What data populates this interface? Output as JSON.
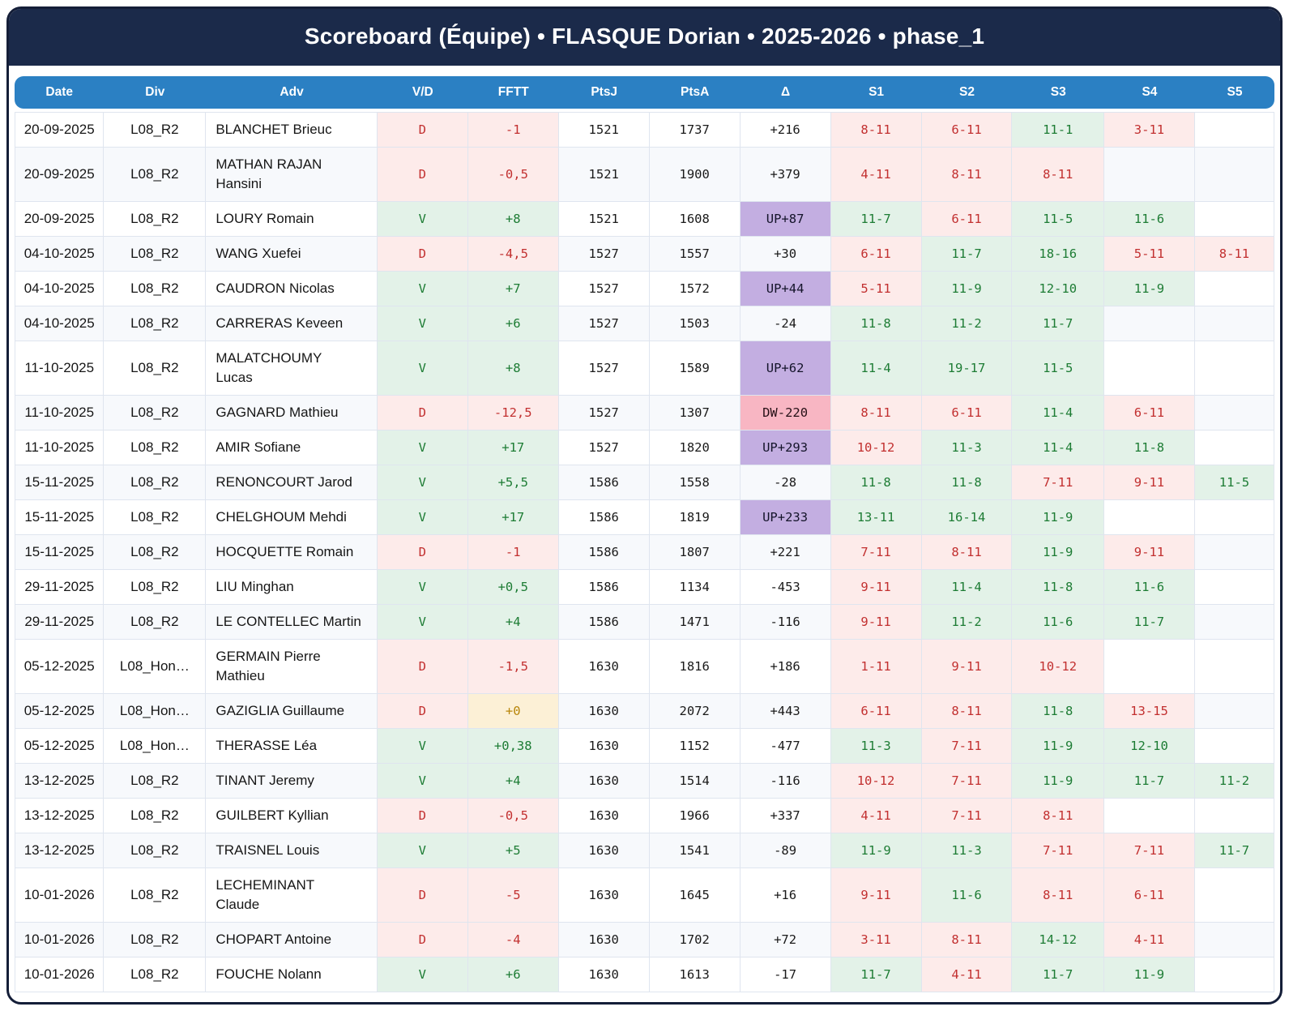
{
  "title": "Scoreboard (Équipe) • FLASQUE Dorian • 2025-2026 • phase_1",
  "colors": {
    "titlebar_bg": "#1b2a4a",
    "card_border": "#141e38",
    "header_bg": "#2b80c3",
    "grid_line": "#dfe5ef",
    "even_row_bg": "#f7f9fc",
    "win_bg": "#e3f2e8",
    "win_text": "#1d7c34",
    "loss_bg": "#fdebea",
    "loss_text": "#c23030",
    "up_bg": "#c3aee1",
    "down_bg": "#f8b6c3",
    "zero_bg": "#fcf0d6",
    "zero_text": "#b8860b"
  },
  "columns": [
    "Date",
    "Div",
    "Adv",
    "V/D",
    "FFTT",
    "PtsJ",
    "PtsA",
    "Δ",
    "S1",
    "S2",
    "S3",
    "S4",
    "S5"
  ],
  "rows": [
    {
      "date": "20-09-2025",
      "div": "L08_R2",
      "adv": "BLANCHET Brieuc",
      "vd": "D",
      "fftt": "-1",
      "fftt_kind": "loss",
      "ptsj": "1521",
      "ptsa": "1737",
      "delta": "+216",
      "delta_kind": "plain",
      "sets": [
        {
          "score": "8-11",
          "win": false
        },
        {
          "score": "6-11",
          "win": false
        },
        {
          "score": "11-1",
          "win": true
        },
        {
          "score": "3-11",
          "win": false
        },
        null
      ]
    },
    {
      "date": "20-09-2025",
      "div": "L08_R2",
      "adv": "MATHAN RAJAN\nHansini",
      "vd": "D",
      "fftt": "-0,5",
      "fftt_kind": "loss",
      "ptsj": "1521",
      "ptsa": "1900",
      "delta": "+379",
      "delta_kind": "plain",
      "sets": [
        {
          "score": "4-11",
          "win": false
        },
        {
          "score": "8-11",
          "win": false
        },
        {
          "score": "8-11",
          "win": false
        },
        null,
        null
      ]
    },
    {
      "date": "20-09-2025",
      "div": "L08_R2",
      "adv": "LOURY Romain",
      "vd": "V",
      "fftt": "+8",
      "fftt_kind": "win",
      "ptsj": "1521",
      "ptsa": "1608",
      "delta": "UP+87",
      "delta_kind": "up",
      "sets": [
        {
          "score": "11-7",
          "win": true
        },
        {
          "score": "6-11",
          "win": false
        },
        {
          "score": "11-5",
          "win": true
        },
        {
          "score": "11-6",
          "win": true
        },
        null
      ]
    },
    {
      "date": "04-10-2025",
      "div": "L08_R2",
      "adv": "WANG Xuefei",
      "vd": "D",
      "fftt": "-4,5",
      "fftt_kind": "loss",
      "ptsj": "1527",
      "ptsa": "1557",
      "delta": "+30",
      "delta_kind": "plain",
      "sets": [
        {
          "score": "6-11",
          "win": false
        },
        {
          "score": "11-7",
          "win": true
        },
        {
          "score": "18-16",
          "win": true
        },
        {
          "score": "5-11",
          "win": false
        },
        {
          "score": "8-11",
          "win": false
        }
      ]
    },
    {
      "date": "04-10-2025",
      "div": "L08_R2",
      "adv": "CAUDRON Nicolas",
      "vd": "V",
      "fftt": "+7",
      "fftt_kind": "win",
      "ptsj": "1527",
      "ptsa": "1572",
      "delta": "UP+44",
      "delta_kind": "up",
      "sets": [
        {
          "score": "5-11",
          "win": false
        },
        {
          "score": "11-9",
          "win": true
        },
        {
          "score": "12-10",
          "win": true
        },
        {
          "score": "11-9",
          "win": true
        },
        null
      ]
    },
    {
      "date": "04-10-2025",
      "div": "L08_R2",
      "adv": "CARRERAS Keveen",
      "vd": "V",
      "fftt": "+6",
      "fftt_kind": "win",
      "ptsj": "1527",
      "ptsa": "1503",
      "delta": "-24",
      "delta_kind": "plain",
      "sets": [
        {
          "score": "11-8",
          "win": true
        },
        {
          "score": "11-2",
          "win": true
        },
        {
          "score": "11-7",
          "win": true
        },
        null,
        null
      ]
    },
    {
      "date": "11-10-2025",
      "div": "L08_R2",
      "adv": "MALATCHOUMY\nLucas",
      "vd": "V",
      "fftt": "+8",
      "fftt_kind": "win",
      "ptsj": "1527",
      "ptsa": "1589",
      "delta": "UP+62",
      "delta_kind": "up",
      "sets": [
        {
          "score": "11-4",
          "win": true
        },
        {
          "score": "19-17",
          "win": true
        },
        {
          "score": "11-5",
          "win": true
        },
        null,
        null
      ]
    },
    {
      "date": "11-10-2025",
      "div": "L08_R2",
      "adv": "GAGNARD Mathieu",
      "vd": "D",
      "fftt": "-12,5",
      "fftt_kind": "loss",
      "ptsj": "1527",
      "ptsa": "1307",
      "delta": "DW-220",
      "delta_kind": "down",
      "sets": [
        {
          "score": "8-11",
          "win": false
        },
        {
          "score": "6-11",
          "win": false
        },
        {
          "score": "11-4",
          "win": true
        },
        {
          "score": "6-11",
          "win": false
        },
        null
      ]
    },
    {
      "date": "11-10-2025",
      "div": "L08_R2",
      "adv": "AMIR Sofiane",
      "vd": "V",
      "fftt": "+17",
      "fftt_kind": "win",
      "ptsj": "1527",
      "ptsa": "1820",
      "delta": "UP+293",
      "delta_kind": "up",
      "sets": [
        {
          "score": "10-12",
          "win": false
        },
        {
          "score": "11-3",
          "win": true
        },
        {
          "score": "11-4",
          "win": true
        },
        {
          "score": "11-8",
          "win": true
        },
        null
      ]
    },
    {
      "date": "15-11-2025",
      "div": "L08_R2",
      "adv": "RENONCOURT Jarod",
      "vd": "V",
      "fftt": "+5,5",
      "fftt_kind": "win",
      "ptsj": "1586",
      "ptsa": "1558",
      "delta": "-28",
      "delta_kind": "plain",
      "sets": [
        {
          "score": "11-8",
          "win": true
        },
        {
          "score": "11-8",
          "win": true
        },
        {
          "score": "7-11",
          "win": false
        },
        {
          "score": "9-11",
          "win": false
        },
        {
          "score": "11-5",
          "win": true
        }
      ]
    },
    {
      "date": "15-11-2025",
      "div": "L08_R2",
      "adv": "CHELGHOUM Mehdi",
      "vd": "V",
      "fftt": "+17",
      "fftt_kind": "win",
      "ptsj": "1586",
      "ptsa": "1819",
      "delta": "UP+233",
      "delta_kind": "up",
      "sets": [
        {
          "score": "13-11",
          "win": true
        },
        {
          "score": "16-14",
          "win": true
        },
        {
          "score": "11-9",
          "win": true
        },
        null,
        null
      ]
    },
    {
      "date": "15-11-2025",
      "div": "L08_R2",
      "adv": "HOCQUETTE Romain",
      "vd": "D",
      "fftt": "-1",
      "fftt_kind": "loss",
      "ptsj": "1586",
      "ptsa": "1807",
      "delta": "+221",
      "delta_kind": "plain",
      "sets": [
        {
          "score": "7-11",
          "win": false
        },
        {
          "score": "8-11",
          "win": false
        },
        {
          "score": "11-9",
          "win": true
        },
        {
          "score": "9-11",
          "win": false
        },
        null
      ]
    },
    {
      "date": "29-11-2025",
      "div": "L08_R2",
      "adv": "LIU Minghan",
      "vd": "V",
      "fftt": "+0,5",
      "fftt_kind": "win",
      "ptsj": "1586",
      "ptsa": "1134",
      "delta": "-453",
      "delta_kind": "plain",
      "sets": [
        {
          "score": "9-11",
          "win": false
        },
        {
          "score": "11-4",
          "win": true
        },
        {
          "score": "11-8",
          "win": true
        },
        {
          "score": "11-6",
          "win": true
        },
        null
      ]
    },
    {
      "date": "29-11-2025",
      "div": "L08_R2",
      "adv": "LE CONTELLEC Martin",
      "vd": "V",
      "fftt": "+4",
      "fftt_kind": "win",
      "ptsj": "1586",
      "ptsa": "1471",
      "delta": "-116",
      "delta_kind": "plain",
      "sets": [
        {
          "score": "9-11",
          "win": false
        },
        {
          "score": "11-2",
          "win": true
        },
        {
          "score": "11-6",
          "win": true
        },
        {
          "score": "11-7",
          "win": true
        },
        null
      ]
    },
    {
      "date": "05-12-2025",
      "div": "L08_Hon…",
      "adv": "GERMAIN Pierre\nMathieu",
      "vd": "D",
      "fftt": "-1,5",
      "fftt_kind": "loss",
      "ptsj": "1630",
      "ptsa": "1816",
      "delta": "+186",
      "delta_kind": "plain",
      "sets": [
        {
          "score": "1-11",
          "win": false
        },
        {
          "score": "9-11",
          "win": false
        },
        {
          "score": "10-12",
          "win": false
        },
        null,
        null
      ]
    },
    {
      "date": "05-12-2025",
      "div": "L08_Hon…",
      "adv": "GAZIGLIA Guillaume",
      "vd": "D",
      "fftt": "+0",
      "fftt_kind": "zero",
      "ptsj": "1630",
      "ptsa": "2072",
      "delta": "+443",
      "delta_kind": "plain",
      "sets": [
        {
          "score": "6-11",
          "win": false
        },
        {
          "score": "8-11",
          "win": false
        },
        {
          "score": "11-8",
          "win": true
        },
        {
          "score": "13-15",
          "win": false
        },
        null
      ]
    },
    {
      "date": "05-12-2025",
      "div": "L08_Hon…",
      "adv": "THERASSE Léa",
      "vd": "V",
      "fftt": "+0,38",
      "fftt_kind": "win",
      "ptsj": "1630",
      "ptsa": "1152",
      "delta": "-477",
      "delta_kind": "plain",
      "sets": [
        {
          "score": "11-3",
          "win": true
        },
        {
          "score": "7-11",
          "win": false
        },
        {
          "score": "11-9",
          "win": true
        },
        {
          "score": "12-10",
          "win": true
        },
        null
      ]
    },
    {
      "date": "13-12-2025",
      "div": "L08_R2",
      "adv": "TINANT Jeremy",
      "vd": "V",
      "fftt": "+4",
      "fftt_kind": "win",
      "ptsj": "1630",
      "ptsa": "1514",
      "delta": "-116",
      "delta_kind": "plain",
      "sets": [
        {
          "score": "10-12",
          "win": false
        },
        {
          "score": "7-11",
          "win": false
        },
        {
          "score": "11-9",
          "win": true
        },
        {
          "score": "11-7",
          "win": true
        },
        {
          "score": "11-2",
          "win": true
        }
      ]
    },
    {
      "date": "13-12-2025",
      "div": "L08_R2",
      "adv": "GUILBERT Kyllian",
      "vd": "D",
      "fftt": "-0,5",
      "fftt_kind": "loss",
      "ptsj": "1630",
      "ptsa": "1966",
      "delta": "+337",
      "delta_kind": "plain",
      "sets": [
        {
          "score": "4-11",
          "win": false
        },
        {
          "score": "7-11",
          "win": false
        },
        {
          "score": "8-11",
          "win": false
        },
        null,
        null
      ]
    },
    {
      "date": "13-12-2025",
      "div": "L08_R2",
      "adv": "TRAISNEL Louis",
      "vd": "V",
      "fftt": "+5",
      "fftt_kind": "win",
      "ptsj": "1630",
      "ptsa": "1541",
      "delta": "-89",
      "delta_kind": "plain",
      "sets": [
        {
          "score": "11-9",
          "win": true
        },
        {
          "score": "11-3",
          "win": true
        },
        {
          "score": "7-11",
          "win": false
        },
        {
          "score": "7-11",
          "win": false
        },
        {
          "score": "11-7",
          "win": true
        }
      ]
    },
    {
      "date": "10-01-2026",
      "div": "L08_R2",
      "adv": "LECHEMINANT\nClaude",
      "vd": "D",
      "fftt": "-5",
      "fftt_kind": "loss",
      "ptsj": "1630",
      "ptsa": "1645",
      "delta": "+16",
      "delta_kind": "plain",
      "sets": [
        {
          "score": "9-11",
          "win": false
        },
        {
          "score": "11-6",
          "win": true
        },
        {
          "score": "8-11",
          "win": false
        },
        {
          "score": "6-11",
          "win": false
        },
        null
      ]
    },
    {
      "date": "10-01-2026",
      "div": "L08_R2",
      "adv": "CHOPART Antoine",
      "vd": "D",
      "fftt": "-4",
      "fftt_kind": "loss",
      "ptsj": "1630",
      "ptsa": "1702",
      "delta": "+72",
      "delta_kind": "plain",
      "sets": [
        {
          "score": "3-11",
          "win": false
        },
        {
          "score": "8-11",
          "win": false
        },
        {
          "score": "14-12",
          "win": true
        },
        {
          "score": "4-11",
          "win": false
        },
        null
      ]
    },
    {
      "date": "10-01-2026",
      "div": "L08_R2",
      "adv": "FOUCHE Nolann",
      "vd": "V",
      "fftt": "+6",
      "fftt_kind": "win",
      "ptsj": "1630",
      "ptsa": "1613",
      "delta": "-17",
      "delta_kind": "plain",
      "sets": [
        {
          "score": "11-7",
          "win": true
        },
        {
          "score": "4-11",
          "win": false
        },
        {
          "score": "11-7",
          "win": true
        },
        {
          "score": "11-9",
          "win": true
        },
        null
      ]
    }
  ]
}
